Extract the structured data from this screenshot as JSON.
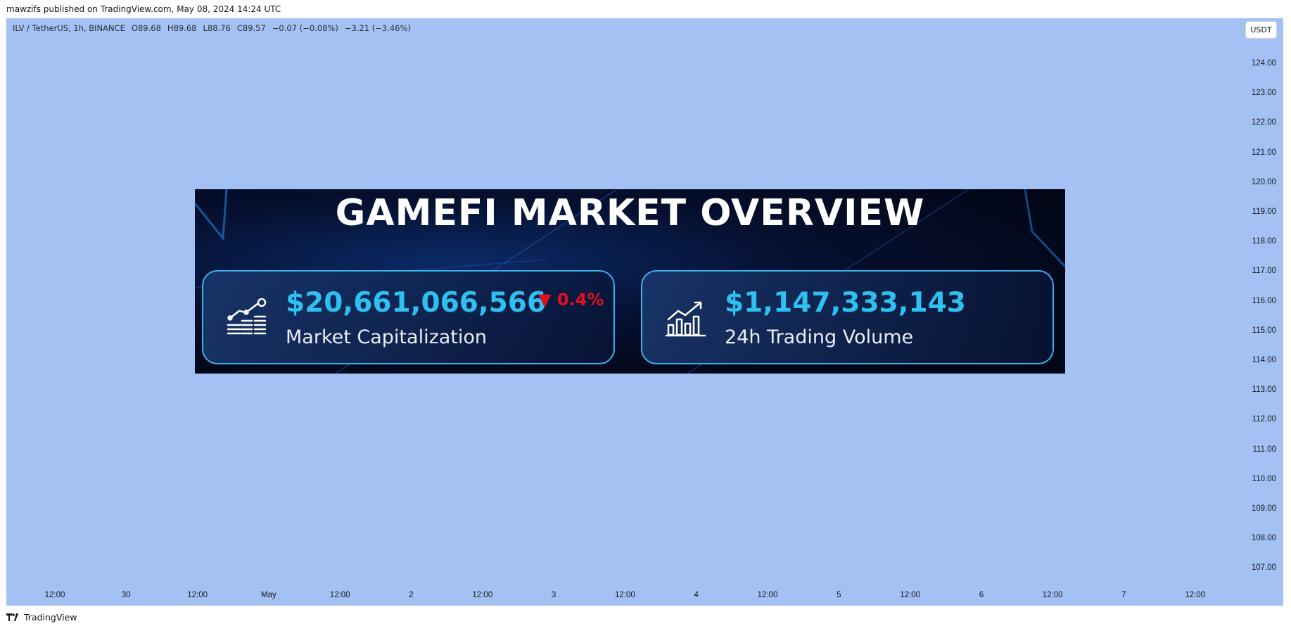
{
  "publisher_line": "mawzifs published on TradingView.com, May 08, 2024 14:24 UTC",
  "symbol": {
    "name": "ILV / TetherUS, 1h, BINANCE",
    "open": "O89.68",
    "high": "H89.68",
    "low": "L88.76",
    "close": "C89.57",
    "change": "−0.07 (−0.08%)",
    "change2": "−3.21 (−3.46%)"
  },
  "currency_button": "USDT",
  "y_axis": [
    "124.00",
    "123.00",
    "122.00",
    "121.00",
    "120.00",
    "119.00",
    "118.00",
    "117.00",
    "116.00",
    "115.00",
    "114.00",
    "113.00",
    "112.00",
    "111.00",
    "110.00",
    "109.00",
    "108.00",
    "107.00"
  ],
  "x_axis": [
    "12:00",
    "30",
    "12:00",
    "May",
    "12:00",
    "2",
    "12:00",
    "3",
    "12:00",
    "4",
    "12:00",
    "5",
    "12:00",
    "6",
    "12:00",
    "7",
    "12:00"
  ],
  "banner": {
    "title": "GAMEFI MARKET OVERVIEW",
    "market_cap": {
      "value": "$20,661,066,566",
      "label": "Market Capitalization",
      "change": "▼ 0.4%",
      "icon": "market-cap-chart-icon"
    },
    "volume": {
      "value": "$1,147,333,143",
      "label": "24h Trading Volume",
      "icon": "trading-volume-chart-icon"
    }
  },
  "footer": {
    "brand": "TradingView",
    "icon": "tradingview-logo-icon"
  },
  "colors": {
    "chart_bg": "#a3c1f3",
    "banner_bg": "#020616",
    "accent_cyan": "#2ec0f0",
    "down_red": "#e5101e"
  }
}
